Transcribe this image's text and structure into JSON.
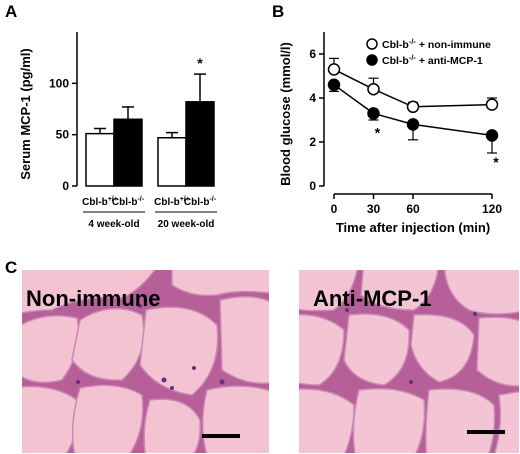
{
  "panels": {
    "a": "A",
    "b": "B",
    "c": "C"
  },
  "chart_data": [
    {
      "type": "bar",
      "ylabel": "Serum MCP-1 (pg/ml)",
      "ylim": [
        0,
        150
      ],
      "yticks": [
        0,
        50,
        100
      ],
      "groups": [
        "4 week-old",
        "20 week-old"
      ],
      "categories": [
        "Cbl-b+/+",
        "Cbl-b-/-"
      ],
      "series": [
        {
          "name": "Cbl-b+/+",
          "fill": "#ffffff",
          "values": [
            51,
            47
          ],
          "errors": [
            5,
            5
          ]
        },
        {
          "name": "Cbl-b-/-",
          "fill": "#000000",
          "values": [
            65,
            82
          ],
          "errors": [
            12,
            27
          ]
        }
      ],
      "significance": [
        {
          "group": "20 week-old",
          "bar": "Cbl-b-/-",
          "mark": "*"
        }
      ]
    },
    {
      "type": "line",
      "ylabel": "Blood glucose (mmol/l)",
      "xlabel": "Time after injection (min)",
      "x": [
        0,
        30,
        60,
        120
      ],
      "xlim": [
        0,
        120
      ],
      "ylim": [
        0,
        7
      ],
      "yticks": [
        0,
        2,
        4,
        6
      ],
      "legend_position": "top-right",
      "series": [
        {
          "name": "Cbl-b-/- + non-immune",
          "marker": "open-circle",
          "y": [
            5.3,
            4.4,
            3.6,
            3.7
          ],
          "errors": [
            0.5,
            0.5,
            0.2,
            0.3
          ]
        },
        {
          "name": "Cbl-b-/- + anti-MCP-1",
          "marker": "filled-circle",
          "y": [
            4.6,
            3.3,
            2.8,
            2.3
          ],
          "errors": [
            0.3,
            0.3,
            0.7,
            0.8
          ]
        }
      ],
      "significance": [
        {
          "x": 30,
          "mark": "*"
        },
        {
          "x": 120,
          "mark": "*"
        }
      ]
    }
  ],
  "micrographs": [
    {
      "label": "Non-immune"
    },
    {
      "label": "Anti-MCP-1"
    }
  ]
}
